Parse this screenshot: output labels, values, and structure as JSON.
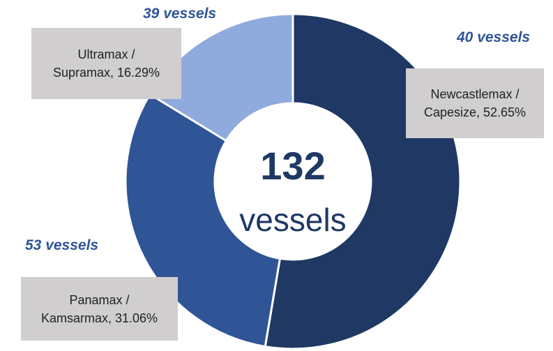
{
  "chart_data": {
    "type": "donut",
    "values": [
      52.65,
      31.06,
      16.29
    ],
    "value_labels": [
      "Newcastlemax / Capesize, 52.65%",
      "Panamax / Kamsarmax, 31.06%",
      "Ultramax / Supramax, 16.29%"
    ],
    "colors": [
      "#1f3864",
      "#2f5597",
      "#8faadc"
    ],
    "annotations": [
      "40 vessels",
      "53 vessels",
      "39 vessels"
    ],
    "center_value": "132",
    "center_label": "vessels"
  }
}
